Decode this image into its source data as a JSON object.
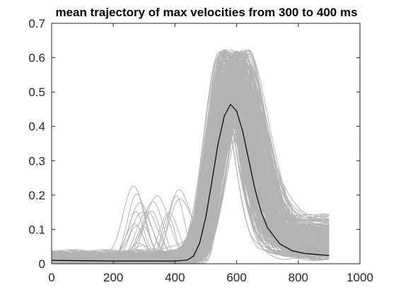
{
  "chart_data": {
    "type": "line",
    "title": "mean trajectory of max velocities from 300 to 400 ms",
    "xlabel": "",
    "ylabel": "",
    "xlim": [
      0,
      1000
    ],
    "ylim": [
      0,
      0.7
    ],
    "xticks": [
      "0",
      "200",
      "400",
      "600",
      "800",
      "1000"
    ],
    "yticks": [
      "0",
      "0.1",
      "0.2",
      "0.3",
      "0.4",
      "0.5",
      "0.6",
      "0.7"
    ],
    "grid": false,
    "legend": "none",
    "colors": {
      "individual": "#b3b3b3",
      "mean": "#000000",
      "axes": "#262626"
    },
    "series": [
      {
        "role": "individual-trials",
        "x_range": [
          0,
          900
        ],
        "onset_range": [
          430,
          520
        ],
        "peak_time_range": [
          540,
          640
        ],
        "peak_value_range": [
          0.32,
          0.62
        ],
        "baseline_range": [
          0.0,
          0.04
        ],
        "end_value_range": [
          0.01,
          0.11
        ]
      },
      {
        "role": "mean",
        "x": [
          0,
          100,
          200,
          300,
          400,
          440,
          460,
          480,
          500,
          520,
          540,
          560,
          580,
          600,
          620,
          640,
          660,
          680,
          700,
          740,
          780,
          820,
          860,
          900
        ],
        "y": [
          0.01,
          0.009,
          0.008,
          0.008,
          0.008,
          0.011,
          0.022,
          0.06,
          0.135,
          0.24,
          0.35,
          0.43,
          0.464,
          0.445,
          0.385,
          0.3,
          0.215,
          0.15,
          0.105,
          0.058,
          0.038,
          0.03,
          0.027,
          0.024
        ]
      }
    ]
  }
}
